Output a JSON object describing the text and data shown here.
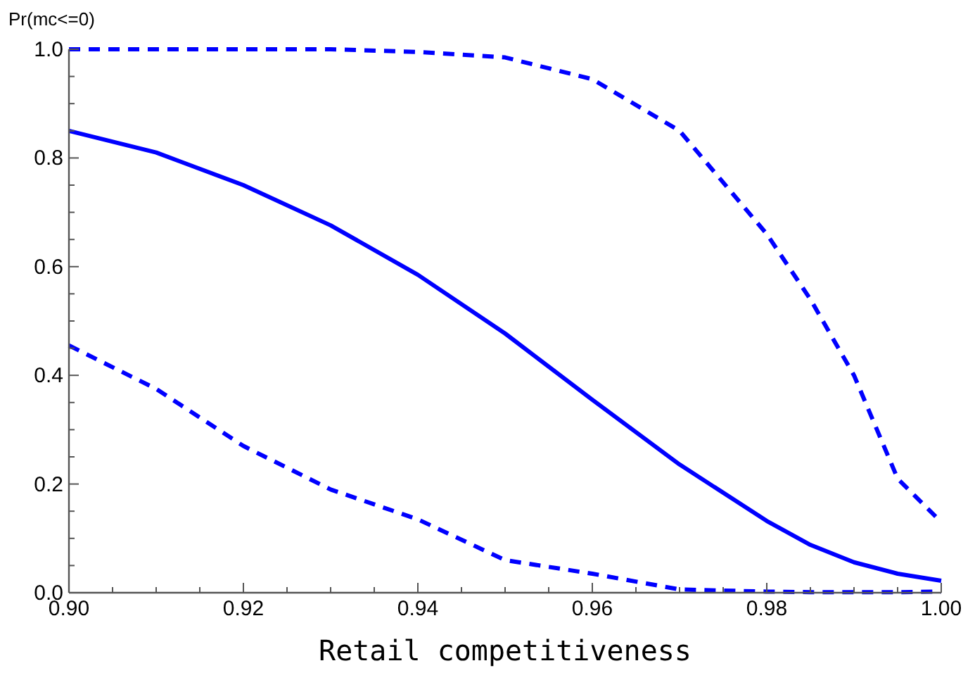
{
  "chart_data": {
    "type": "line",
    "ylabel": "Pr(mc<=0)",
    "xlabel": "Retail competitiveness",
    "x": [
      0.9,
      0.91,
      0.92,
      0.93,
      0.94,
      0.95,
      0.96,
      0.97,
      0.98,
      0.985,
      0.99,
      0.995,
      1.0
    ],
    "series": [
      {
        "color": "#0000ff",
        "line_style": "solid",
        "values": [
          0.85,
          0.81,
          0.75,
          0.676,
          0.585,
          0.477,
          0.355,
          0.236,
          0.132,
          0.088,
          0.056,
          0.035,
          0.022
        ]
      },
      {
        "color": "#0000ff",
        "line_style": "dashed",
        "values": [
          1.0,
          1.0,
          1.0,
          1.0,
          0.995,
          0.985,
          0.945,
          0.85,
          0.66,
          0.54,
          0.4,
          0.21,
          0.13
        ]
      },
      {
        "color": "#0000ff",
        "line_style": "dashed",
        "values": [
          0.455,
          0.375,
          0.27,
          0.19,
          0.135,
          0.06,
          0.035,
          0.006,
          0.002,
          0.001,
          0.001,
          0.001,
          0.002
        ]
      }
    ],
    "xlim": [
      0.9,
      1.0
    ],
    "ylim": [
      0,
      1.0
    ],
    "xticks": [
      {
        "value": 0.9,
        "label": "0.90"
      },
      {
        "value": 0.905,
        "label": null
      },
      {
        "value": 0.91,
        "label": null
      },
      {
        "value": 0.915,
        "label": null
      },
      {
        "value": 0.92,
        "label": "0.92"
      },
      {
        "value": 0.925,
        "label": null
      },
      {
        "value": 0.93,
        "label": null
      },
      {
        "value": 0.935,
        "label": null
      },
      {
        "value": 0.94,
        "label": "0.94"
      },
      {
        "value": 0.945,
        "label": null
      },
      {
        "value": 0.95,
        "label": null
      },
      {
        "value": 0.955,
        "label": null
      },
      {
        "value": 0.96,
        "label": "0.96"
      },
      {
        "value": 0.965,
        "label": null
      },
      {
        "value": 0.97,
        "label": null
      },
      {
        "value": 0.975,
        "label": null
      },
      {
        "value": 0.98,
        "label": "0.98"
      },
      {
        "value": 0.985,
        "label": null
      },
      {
        "value": 0.99,
        "label": null
      },
      {
        "value": 0.995,
        "label": null
      },
      {
        "value": 1.0,
        "label": "1.00"
      }
    ],
    "yticks": [
      {
        "value": 0,
        "label": "0.0"
      },
      {
        "value": 0.05,
        "label": null
      },
      {
        "value": 0.1,
        "label": null
      },
      {
        "value": 0.15,
        "label": null
      },
      {
        "value": 0.2,
        "label": "0.2"
      },
      {
        "value": 0.25,
        "label": null
      },
      {
        "value": 0.3,
        "label": null
      },
      {
        "value": 0.35,
        "label": null
      },
      {
        "value": 0.4,
        "label": "0.4"
      },
      {
        "value": 0.45,
        "label": null
      },
      {
        "value": 0.5,
        "label": null
      },
      {
        "value": 0.55,
        "label": null
      },
      {
        "value": 0.6,
        "label": "0.6"
      },
      {
        "value": 0.65,
        "label": null
      },
      {
        "value": 0.7,
        "label": null
      },
      {
        "value": 0.75,
        "label": null
      },
      {
        "value": 0.8,
        "label": "0.8"
      },
      {
        "value": 0.85,
        "label": null
      },
      {
        "value": 0.9,
        "label": null
      },
      {
        "value": 0.95,
        "label": null
      },
      {
        "value": 1.0,
        "label": "1.0"
      }
    ],
    "grid": false,
    "marker": "none"
  }
}
